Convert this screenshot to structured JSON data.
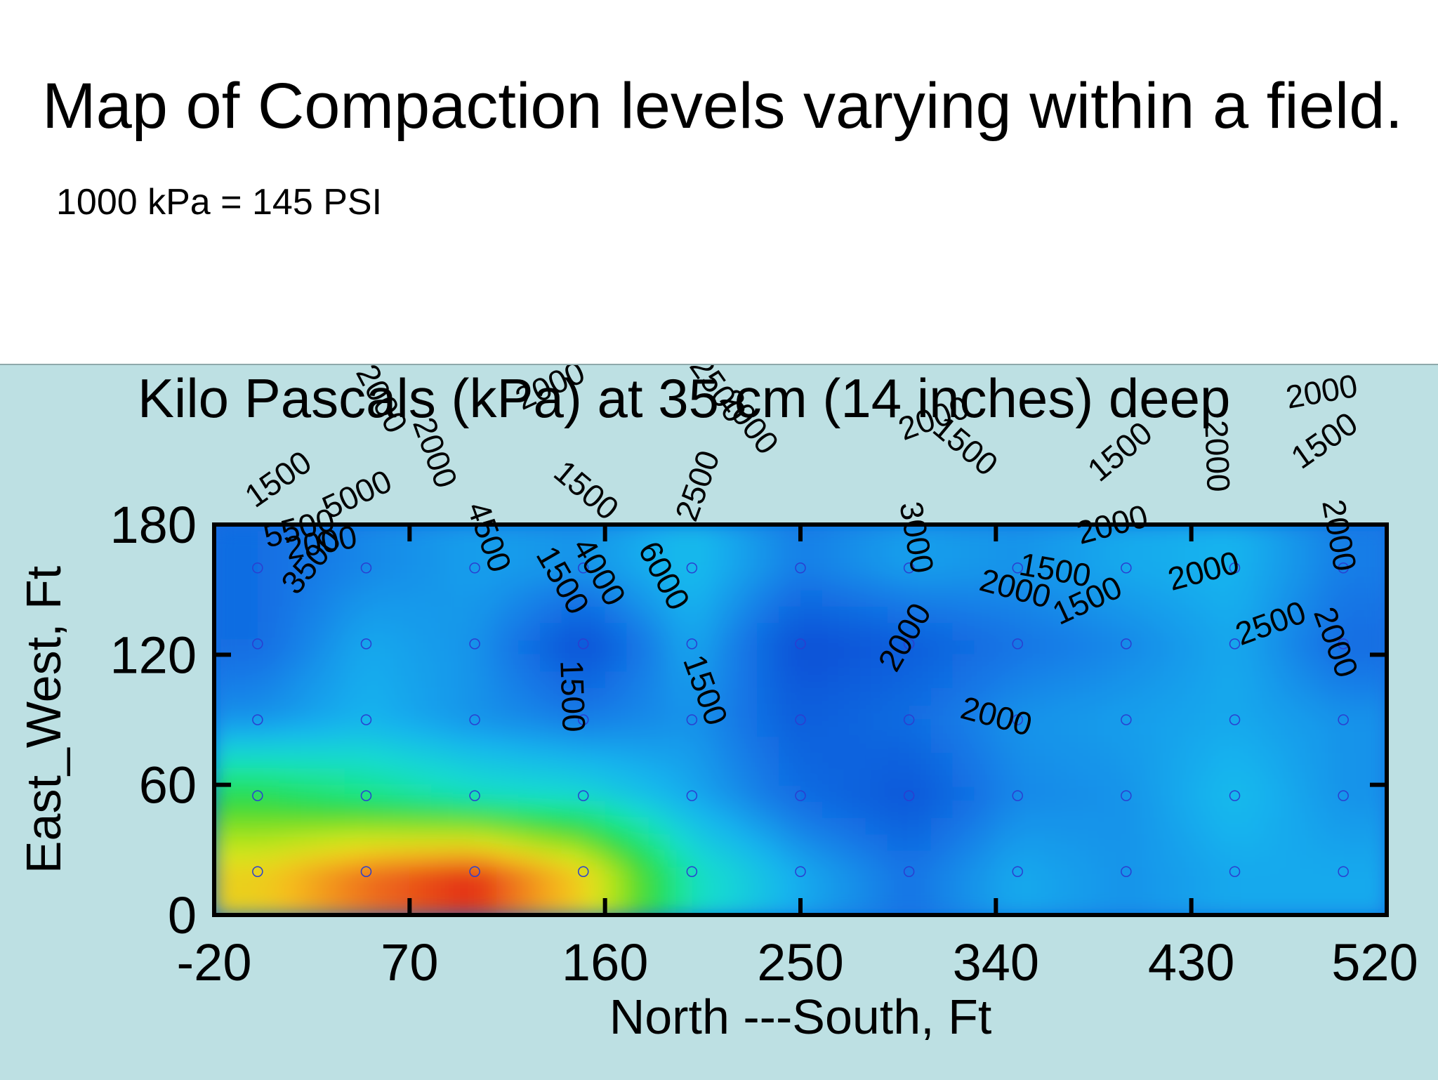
{
  "slide": {
    "title": "Map of Compaction levels varying within a field.",
    "note": "1000 kPa = 145 PSI"
  },
  "chart_data": {
    "type": "heatmap",
    "title": "Kilo Pascals (kPa) at 35 cm (14 inches) deep",
    "xlabel": "North ---South, Ft",
    "ylabel": "East_West, Ft",
    "xlim": [
      -20,
      520
    ],
    "ylim": [
      0,
      180
    ],
    "x_ticks": [
      "-20",
      "70",
      "160",
      "250",
      "340",
      "430",
      "520"
    ],
    "y_ticks": [
      "0",
      "60",
      "120",
      "180"
    ],
    "x_tick_values": [
      -20,
      70,
      160,
      250,
      340,
      430,
      520
    ],
    "y_tick_values": [
      0,
      60,
      120,
      180
    ],
    "sample_x": [
      0,
      50,
      100,
      150,
      200,
      250,
      300,
      350,
      400,
      450,
      500
    ],
    "sample_y": [
      20,
      55,
      90,
      125,
      160
    ],
    "values": [
      [
        5200,
        6000,
        6400,
        5200,
        2800,
        2000,
        1500,
        2000,
        1800,
        2000,
        2000
      ],
      [
        3600,
        3200,
        2800,
        2600,
        2000,
        1400,
        1100,
        1700,
        1800,
        2200,
        1800
      ],
      [
        1800,
        2100,
        1800,
        1600,
        1800,
        1200,
        1400,
        1800,
        1900,
        2000,
        1800
      ],
      [
        1400,
        2000,
        1800,
        1000,
        2000,
        1000,
        1200,
        1500,
        1700,
        2000,
        1400
      ],
      [
        1400,
        1700,
        1900,
        1800,
        2200,
        1600,
        1900,
        1800,
        2000,
        2100,
        1600
      ]
    ],
    "colorscale": [
      "#0a4fd6",
      "#1478e6",
      "#19b4ee",
      "#14dcd0",
      "#1ee682",
      "#2ad83c",
      "#8ee020",
      "#d8e81a",
      "#f5c01a",
      "#f07a1c",
      "#e01e14"
    ],
    "color_range": [
      1000,
      6500
    ],
    "contour_labels": [
      "2000",
      "2000",
      "2500",
      "2000",
      "2000",
      "1500",
      "1500",
      "1500",
      "2000",
      "2000",
      "2000",
      "1500",
      "1500",
      "2500",
      "4500",
      "5000",
      "5500",
      "2000",
      "3500",
      "3000",
      "4000",
      "6000",
      "1500",
      "2000",
      "2000",
      "1500",
      "2000",
      "2000",
      "1500",
      "2500",
      "2000",
      "2000",
      "1500",
      "2000",
      "1500"
    ]
  }
}
